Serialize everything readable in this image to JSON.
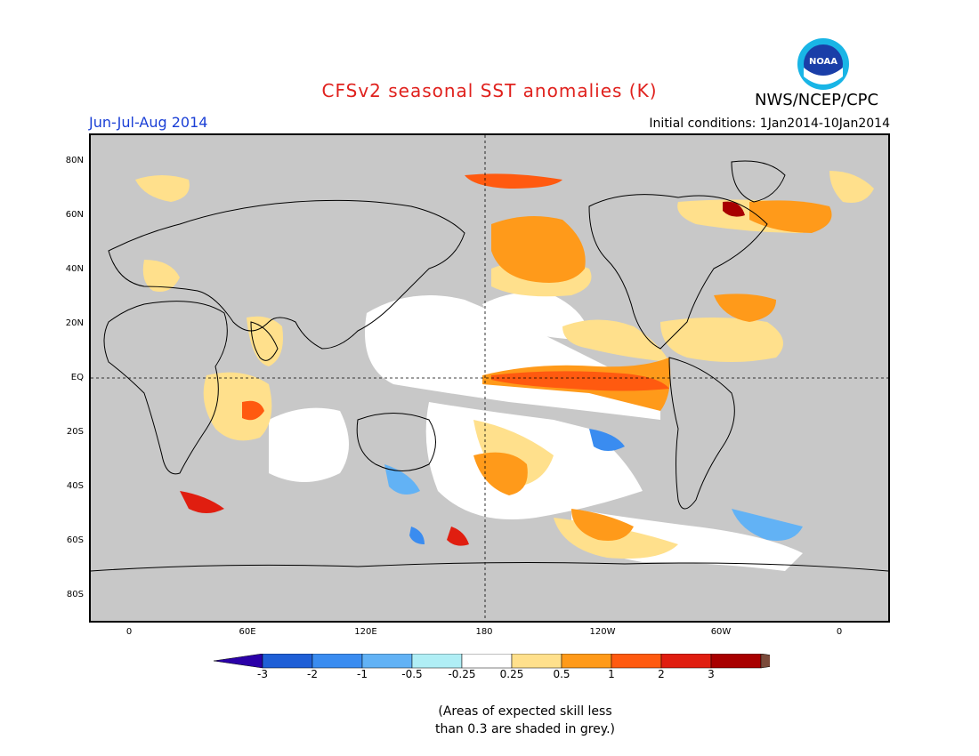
{
  "title": "CFSv2 seasonal SST anomalies (K)",
  "agency": "NWS/NCEP/CPC",
  "logo_text": "NOAA",
  "season": "Jun-Jul-Aug 2014",
  "initial_conditions": "Initial conditions: 1Jan2014-10Jan2014",
  "lat_labels": [
    "80N",
    "60N",
    "40N",
    "20N",
    "EQ",
    "20S",
    "40S",
    "60S",
    "80S"
  ],
  "lon_labels": [
    "0",
    "60E",
    "120E",
    "180",
    "120W",
    "60W",
    "0"
  ],
  "colorbar": {
    "colors": [
      "#2b00a8",
      "#1f5fd6",
      "#3a8cf0",
      "#62b2f5",
      "#b0eef5",
      "#ffffff",
      "#ffe08c",
      "#ff9a1a",
      "#ff5a10",
      "#e01e10",
      "#a80000",
      "#7a4a3a"
    ],
    "labels": [
      "-3",
      "-2",
      "-1",
      "-0.5",
      "-0.25",
      "0.25",
      "0.5",
      "1",
      "2",
      "3"
    ]
  },
  "note_line1": "(Areas of expected skill less",
  "note_line2": "than 0.3 are shaded in grey.)",
  "colors": {
    "grey_no_skill": "#c8c8c8",
    "title_red": "#e0211d",
    "season_blue": "#1a3fd6"
  }
}
